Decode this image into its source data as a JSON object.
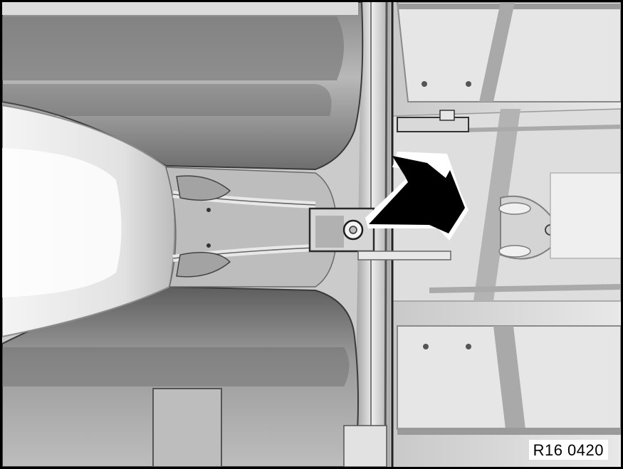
{
  "figure": {
    "reference_code": "R16 0420"
  },
  "colors": {
    "frame": "#000000",
    "arrow": "#000000",
    "background": "#ffffff"
  }
}
